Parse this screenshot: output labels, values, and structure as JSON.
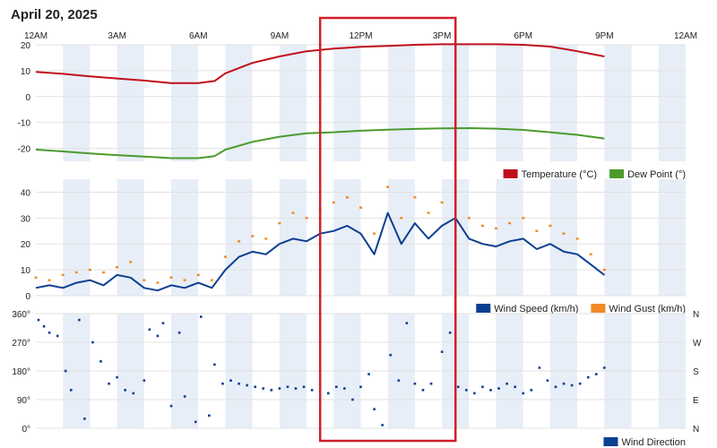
{
  "page": {
    "title": "April 20, 2025"
  },
  "x_axis": {
    "range_hours": [
      0,
      24
    ],
    "ticks": [
      {
        "hour": 0,
        "label": "12AM"
      },
      {
        "hour": 3,
        "label": "3AM"
      },
      {
        "hour": 6,
        "label": "6AM"
      },
      {
        "hour": 9,
        "label": "9AM"
      },
      {
        "hour": 12,
        "label": "12PM"
      },
      {
        "hour": 15,
        "label": "3PM"
      },
      {
        "hour": 18,
        "label": "6PM"
      },
      {
        "hour": 21,
        "label": "9PM"
      },
      {
        "hour": 24,
        "label": "12AM"
      }
    ]
  },
  "highlight": {
    "label": "",
    "x_range_hours": [
      10.5,
      15.5
    ],
    "color": "#d0202a"
  },
  "chart_data": [
    {
      "type": "line",
      "xlabel": "",
      "ylabel": "",
      "ylim": [
        -25,
        20
      ],
      "yticks": [
        20,
        10,
        0,
        -10,
        -20
      ],
      "legend_position": "bottom-right",
      "series": [
        {
          "name": "Temperature (°C)",
          "color": "#c0101c",
          "points": [
            [
              0,
              9.5
            ],
            [
              1,
              8.8
            ],
            [
              2,
              7.8
            ],
            [
              3,
              7.0
            ],
            [
              4,
              6.2
            ],
            [
              5,
              5.2
            ],
            [
              6,
              5.2
            ],
            [
              6.6,
              6.0
            ],
            [
              7,
              9.0
            ],
            [
              8,
              13.0
            ],
            [
              9,
              15.5
            ],
            [
              10,
              17.5
            ],
            [
              11,
              18.5
            ],
            [
              12,
              19.2
            ],
            [
              13,
              19.6
            ],
            [
              14,
              20.0
            ],
            [
              15,
              20.2
            ],
            [
              16,
              20.2
            ],
            [
              17,
              20.2
            ],
            [
              18,
              20.0
            ],
            [
              19,
              19.3
            ],
            [
              20,
              17.5
            ],
            [
              21,
              15.5
            ]
          ]
        },
        {
          "name": "Dew Point (°)",
          "color": "#4a9a2c",
          "points": [
            [
              0,
              -20.5
            ],
            [
              1,
              -21.2
            ],
            [
              2,
              -22.0
            ],
            [
              3,
              -22.6
            ],
            [
              4,
              -23.2
            ],
            [
              5,
              -23.8
            ],
            [
              6,
              -23.8
            ],
            [
              6.6,
              -23.0
            ],
            [
              7,
              -20.5
            ],
            [
              8,
              -17.5
            ],
            [
              9,
              -15.5
            ],
            [
              10,
              -14.2
            ],
            [
              11,
              -13.8
            ],
            [
              12,
              -13.2
            ],
            [
              13,
              -12.8
            ],
            [
              14,
              -12.5
            ],
            [
              15,
              -12.3
            ],
            [
              16,
              -12.2
            ],
            [
              17,
              -12.4
            ],
            [
              18,
              -12.9
            ],
            [
              19,
              -13.8
            ],
            [
              20,
              -14.8
            ],
            [
              21,
              -16.2
            ]
          ]
        }
      ]
    },
    {
      "type": "line",
      "xlabel": "",
      "ylabel": "",
      "ylim": [
        0,
        45
      ],
      "yticks": [
        40,
        30,
        20,
        10,
        0
      ],
      "legend_position": "bottom-right",
      "series": [
        {
          "name": "Wind Speed (km/h)",
          "color": "#0d3f91",
          "style": "line",
          "points": [
            [
              0,
              3
            ],
            [
              0.5,
              4
            ],
            [
              1,
              3
            ],
            [
              1.5,
              5
            ],
            [
              2,
              6
            ],
            [
              2.5,
              4
            ],
            [
              3,
              8
            ],
            [
              3.5,
              7
            ],
            [
              4,
              3
            ],
            [
              4.5,
              2
            ],
            [
              5,
              4
            ],
            [
              5.5,
              3
            ],
            [
              6,
              5
            ],
            [
              6.5,
              3
            ],
            [
              7,
              10
            ],
            [
              7.5,
              15
            ],
            [
              8,
              17
            ],
            [
              8.5,
              16
            ],
            [
              9,
              20
            ],
            [
              9.5,
              22
            ],
            [
              10,
              21
            ],
            [
              10.5,
              24
            ],
            [
              11,
              25
            ],
            [
              11.5,
              27
            ],
            [
              12,
              24
            ],
            [
              12.5,
              16
            ],
            [
              13,
              32
            ],
            [
              13.5,
              20
            ],
            [
              14,
              28
            ],
            [
              14.5,
              22
            ],
            [
              15,
              27
            ],
            [
              15.5,
              30
            ],
            [
              16,
              22
            ],
            [
              16.5,
              20
            ],
            [
              17,
              19
            ],
            [
              17.5,
              21
            ],
            [
              18,
              22
            ],
            [
              18.5,
              18
            ],
            [
              19,
              20
            ],
            [
              19.5,
              17
            ],
            [
              20,
              16
            ],
            [
              20.5,
              12
            ],
            [
              21,
              8
            ]
          ]
        },
        {
          "name": "Wind Gust (km/h)",
          "color": "#f08a24",
          "style": "dots",
          "points": [
            [
              0,
              7
            ],
            [
              0.5,
              6
            ],
            [
              1,
              8
            ],
            [
              1.5,
              9
            ],
            [
              2,
              10
            ],
            [
              2.5,
              9
            ],
            [
              3,
              11
            ],
            [
              3.5,
              13
            ],
            [
              4,
              6
            ],
            [
              4.5,
              5
            ],
            [
              5,
              7
            ],
            [
              5.5,
              6
            ],
            [
              6,
              8
            ],
            [
              6.5,
              6
            ],
            [
              7,
              15
            ],
            [
              7.5,
              21
            ],
            [
              8,
              23
            ],
            [
              8.5,
              22
            ],
            [
              9,
              28
            ],
            [
              9.5,
              32
            ],
            [
              10,
              30
            ],
            [
              10.5,
              33
            ],
            [
              11,
              36
            ],
            [
              11.5,
              38
            ],
            [
              12,
              34
            ],
            [
              12.5,
              24
            ],
            [
              13,
              42
            ],
            [
              13.5,
              30
            ],
            [
              14,
              38
            ],
            [
              14.5,
              32
            ],
            [
              15,
              36
            ],
            [
              15.5,
              40
            ],
            [
              16,
              30
            ],
            [
              16.5,
              27
            ],
            [
              17,
              26
            ],
            [
              17.5,
              28
            ],
            [
              18,
              30
            ],
            [
              18.5,
              25
            ],
            [
              19,
              27
            ],
            [
              19.5,
              24
            ],
            [
              20,
              22
            ],
            [
              20.5,
              16
            ],
            [
              21,
              10
            ]
          ]
        }
      ]
    },
    {
      "type": "scatter",
      "xlabel": "",
      "ylabel": "",
      "ylim": [
        0,
        360
      ],
      "yticks": [
        {
          "value": 360,
          "label": "360°",
          "right": "N"
        },
        {
          "value": 270,
          "label": "270°",
          "right": "W"
        },
        {
          "value": 180,
          "label": "180°",
          "right": "S"
        },
        {
          "value": 90,
          "label": "90°",
          "right": "E"
        },
        {
          "value": 0,
          "label": "0°",
          "right": "N"
        }
      ],
      "legend_position": "bottom-right",
      "series": [
        {
          "name": "Wind Direction",
          "color": "#0d3f91",
          "points": [
            [
              0.1,
              340
            ],
            [
              0.3,
              320
            ],
            [
              0.5,
              300
            ],
            [
              0.8,
              290
            ],
            [
              1.1,
              180
            ],
            [
              1.3,
              120
            ],
            [
              1.6,
              340
            ],
            [
              1.8,
              30
            ],
            [
              2.1,
              270
            ],
            [
              2.4,
              210
            ],
            [
              2.7,
              140
            ],
            [
              3.0,
              160
            ],
            [
              3.3,
              120
            ],
            [
              3.6,
              110
            ],
            [
              4.0,
              150
            ],
            [
              4.2,
              310
            ],
            [
              4.5,
              290
            ],
            [
              4.7,
              330
            ],
            [
              5.0,
              70
            ],
            [
              5.3,
              300
            ],
            [
              5.5,
              100
            ],
            [
              5.9,
              20
            ],
            [
              6.1,
              350
            ],
            [
              6.4,
              40
            ],
            [
              6.6,
              200
            ],
            [
              6.9,
              140
            ],
            [
              7.2,
              150
            ],
            [
              7.5,
              140
            ],
            [
              7.8,
              135
            ],
            [
              8.1,
              130
            ],
            [
              8.4,
              125
            ],
            [
              8.7,
              120
            ],
            [
              9.0,
              125
            ],
            [
              9.3,
              130
            ],
            [
              9.6,
              125
            ],
            [
              9.9,
              130
            ],
            [
              10.2,
              120
            ],
            [
              10.5,
              140
            ],
            [
              10.8,
              110
            ],
            [
              11.1,
              130
            ],
            [
              11.4,
              125
            ],
            [
              11.7,
              90
            ],
            [
              12.0,
              130
            ],
            [
              12.3,
              170
            ],
            [
              12.5,
              60
            ],
            [
              12.8,
              10
            ],
            [
              13.1,
              230
            ],
            [
              13.4,
              150
            ],
            [
              13.7,
              330
            ],
            [
              14.0,
              140
            ],
            [
              14.3,
              120
            ],
            [
              14.6,
              140
            ],
            [
              15.0,
              240
            ],
            [
              15.3,
              300
            ],
            [
              15.6,
              130
            ],
            [
              15.9,
              120
            ],
            [
              16.2,
              110
            ],
            [
              16.5,
              130
            ],
            [
              16.8,
              120
            ],
            [
              17.1,
              125
            ],
            [
              17.4,
              140
            ],
            [
              17.7,
              130
            ],
            [
              18.0,
              110
            ],
            [
              18.3,
              120
            ],
            [
              18.6,
              190
            ],
            [
              18.9,
              150
            ],
            [
              19.2,
              130
            ],
            [
              19.5,
              140
            ],
            [
              19.8,
              135
            ],
            [
              20.1,
              140
            ],
            [
              20.4,
              160
            ],
            [
              20.7,
              170
            ],
            [
              21.0,
              190
            ]
          ]
        }
      ]
    }
  ]
}
